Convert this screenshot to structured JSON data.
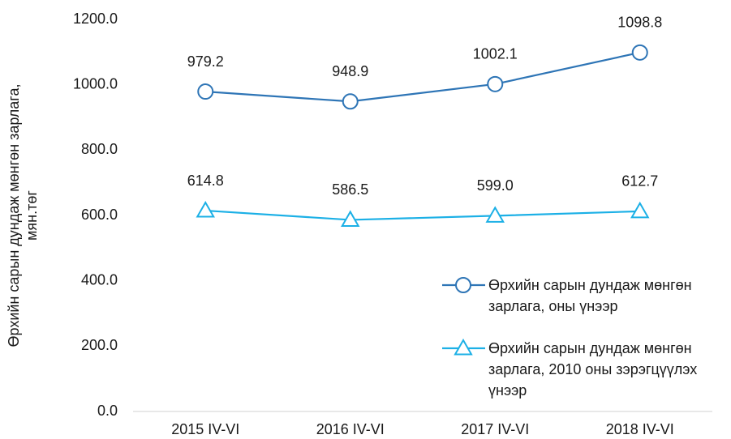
{
  "chart_data": {
    "type": "line",
    "y_label": [
      "Өрхийн сарын дундаж мөнгөн зарлага,",
      "мян.төг"
    ],
    "categories": [
      "2015 IV-VI",
      "2016 IV-VI",
      "2017 IV-VI",
      "2018 IV-VI"
    ],
    "series": [
      {
        "name": "Өрхийн сарын дундаж мөнгөн зарлага, оны үнээр",
        "color": "#2e75b6",
        "marker": "circle",
        "values": [
          979.2,
          948.9,
          1002.1,
          1098.8
        ]
      },
      {
        "name": "Өрхийн сарын дундаж мөнгөн зарлага, 2010 оны зэрэгцүүлэх үнээр",
        "color": "#1cb0e6",
        "marker": "triangle",
        "values": [
          614.8,
          586.5,
          599.0,
          612.7
        ],
        "value_labels": [
          "614.8",
          "586.5",
          "599.0",
          "612.7"
        ]
      }
    ],
    "ylim": [
      0,
      1200
    ],
    "yticks": [
      {
        "value": 0,
        "label": "0.0"
      },
      {
        "value": 200,
        "label": "200.0"
      },
      {
        "value": 400,
        "label": "400.0"
      },
      {
        "value": 600,
        "label": "600.0"
      },
      {
        "value": 800,
        "label": "800.0"
      },
      {
        "value": 1000,
        "label": "1000.0"
      },
      {
        "value": 1200,
        "label": "1200.0"
      }
    ],
    "grid": false,
    "legend": "right"
  }
}
